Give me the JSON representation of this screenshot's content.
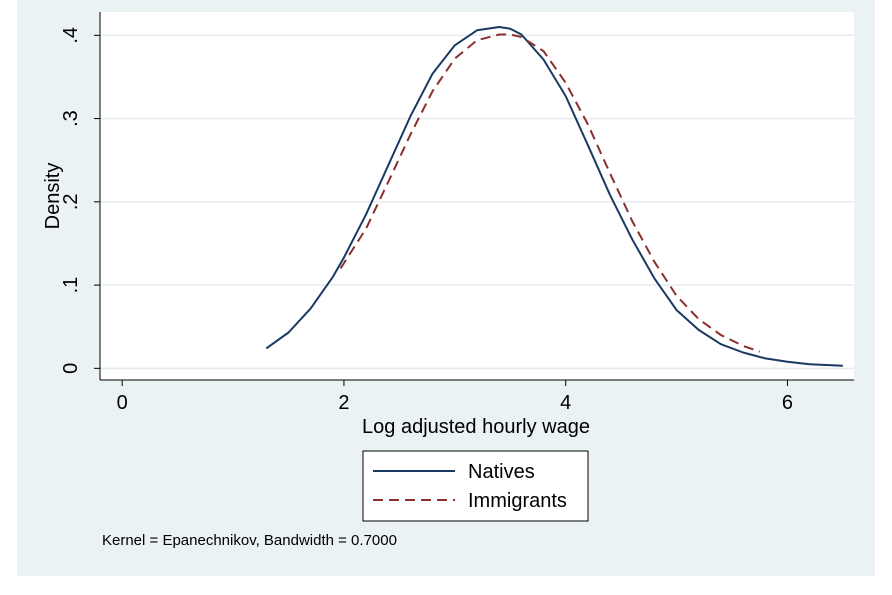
{
  "chart_data": {
    "type": "line",
    "xlabel": "Log adjusted hourly wage",
    "ylabel": "Density",
    "xlim": [
      -0.2,
      6.6
    ],
    "ylim": [
      -0.014,
      0.428
    ],
    "x_ticks": [
      {
        "value": 0,
        "label": "0"
      },
      {
        "value": 2,
        "label": "2"
      },
      {
        "value": 4,
        "label": "4"
      },
      {
        "value": 6,
        "label": "6"
      }
    ],
    "y_ticks": [
      {
        "value": 0,
        "label": "0"
      },
      {
        "value": 0.1,
        "label": ".1"
      },
      {
        "value": 0.2,
        "label": ".2"
      },
      {
        "value": 0.3,
        "label": ".3"
      },
      {
        "value": 0.4,
        "label": ".4"
      }
    ],
    "grid": true,
    "legend_position": "bottom",
    "note": "Kernel = Epanechnikov, Bandwidth = 0.7000",
    "series": [
      {
        "name": "Natives",
        "color": "#1a3a63",
        "style": "solid",
        "x": [
          1.3,
          1.5,
          1.7,
          1.9,
          2.0,
          2.2,
          2.4,
          2.6,
          2.8,
          3.0,
          3.2,
          3.4,
          3.5,
          3.6,
          3.8,
          4.0,
          4.2,
          4.4,
          4.6,
          4.8,
          5.0,
          5.2,
          5.4,
          5.6,
          5.8,
          6.0,
          6.2,
          6.5
        ],
        "values": [
          0.024,
          0.043,
          0.072,
          0.11,
          0.133,
          0.185,
          0.244,
          0.303,
          0.354,
          0.388,
          0.406,
          0.41,
          0.408,
          0.401,
          0.371,
          0.327,
          0.268,
          0.208,
          0.155,
          0.108,
          0.07,
          0.046,
          0.029,
          0.019,
          0.012,
          0.008,
          0.005,
          0.003
        ]
      },
      {
        "name": "Immigrants",
        "color": "#8b2f2f",
        "style": "dashed",
        "x": [
          1.97,
          2.2,
          2.4,
          2.6,
          2.8,
          3.0,
          3.2,
          3.4,
          3.5,
          3.6,
          3.8,
          4.0,
          4.2,
          4.4,
          4.6,
          4.8,
          5.0,
          5.2,
          5.4,
          5.6,
          5.75
        ],
        "values": [
          0.12,
          0.168,
          0.224,
          0.281,
          0.333,
          0.372,
          0.394,
          0.401,
          0.401,
          0.398,
          0.381,
          0.343,
          0.293,
          0.234,
          0.177,
          0.128,
          0.087,
          0.059,
          0.04,
          0.027,
          0.02
        ]
      }
    ]
  }
}
